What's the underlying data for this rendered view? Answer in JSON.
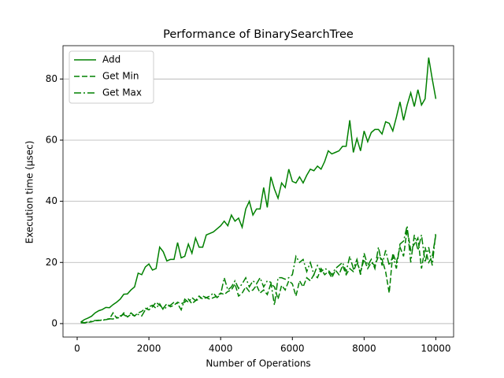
{
  "chart_data": {
    "type": "line",
    "title": "Performance of BinarySearchTree",
    "x_label": "Number of Operations",
    "y_label": "Execution time (μsec)",
    "x": [
      100,
      200,
      300,
      400,
      500,
      600,
      700,
      800,
      900,
      1000,
      1100,
      1200,
      1300,
      1400,
      1500,
      1600,
      1700,
      1800,
      1900,
      2000,
      2100,
      2200,
      2300,
      2400,
      2500,
      2600,
      2700,
      2800,
      2900,
      3000,
      3100,
      3200,
      3300,
      3400,
      3500,
      3600,
      3700,
      3800,
      3900,
      4000,
      4100,
      4200,
      4300,
      4400,
      4500,
      4600,
      4700,
      4800,
      4900,
      5000,
      5100,
      5200,
      5300,
      5400,
      5500,
      5600,
      5700,
      5800,
      5900,
      6000,
      6100,
      6200,
      6300,
      6400,
      6500,
      6600,
      6700,
      6800,
      6900,
      7000,
      7100,
      7200,
      7300,
      7400,
      7500,
      7600,
      7700,
      7800,
      7900,
      8000,
      8100,
      8200,
      8300,
      8400,
      8500,
      8600,
      8700,
      8800,
      8900,
      9000,
      9100,
      9200,
      9300,
      9400,
      9500,
      9600,
      9700,
      9800,
      9900,
      10000
    ],
    "series": [
      {
        "name": "Add",
        "color": "#008000",
        "linestyle": "solid",
        "values": [
          0.5,
          1.3,
          1.8,
          2.4,
          3.5,
          4.2,
          4.6,
          5.3,
          5.2,
          6.2,
          7,
          8,
          9.6,
          9.7,
          11,
          12,
          16.5,
          16,
          18.5,
          19.5,
          17.5,
          18,
          25,
          23.5,
          20.5,
          21,
          21,
          26.5,
          21.5,
          22,
          26,
          23,
          28,
          25,
          25,
          29,
          29.5,
          30,
          31,
          32,
          33.5,
          32,
          35.5,
          33.5,
          34.5,
          31.5,
          37.5,
          40,
          35.5,
          37.5,
          37.5,
          44.5,
          38,
          48,
          44,
          41,
          46,
          44.5,
          50.5,
          46.5,
          46,
          48,
          46,
          48.5,
          50.5,
          50,
          51.5,
          50.5,
          53,
          56.5,
          55.5,
          56,
          56.5,
          58,
          58,
          66.5,
          56,
          60.5,
          56.5,
          63,
          59.5,
          62.5,
          63.5,
          63.5,
          62,
          66,
          65.5,
          63,
          67.5,
          72.5,
          66.5,
          71.5,
          75.5,
          71,
          76.5,
          71.5,
          73.5,
          87,
          80,
          73.5
        ]
      },
      {
        "name": "Get Min",
        "color": "#008000",
        "linestyle": "dashed",
        "values": [
          0.3,
          0.2,
          0.4,
          0.6,
          0.9,
          1.0,
          1.2,
          1.3,
          1.5,
          3.5,
          1.8,
          2.0,
          3.5,
          2.2,
          3.0,
          2.5,
          3.5,
          4.0,
          5.0,
          4.5,
          5.5,
          7.0,
          6.0,
          5.0,
          6.5,
          5.5,
          6.0,
          7.0,
          6.5,
          7.0,
          8.0,
          6.5,
          7.5,
          9.0,
          8.0,
          8.5,
          8.0,
          8.5,
          9.0,
          10.0,
          9.5,
          10.5,
          11.0,
          13.0,
          9.0,
          10.0,
          12.0,
          10.5,
          11.0,
          12.5,
          10.0,
          11.0,
          9.5,
          13.0,
          12.0,
          8.0,
          12.5,
          11.0,
          14.0,
          13.0,
          9.0,
          14.0,
          12.0,
          15.0,
          14.0,
          16.0,
          15.0,
          18.0,
          16.0,
          17.0,
          15.0,
          17.5,
          16.0,
          19.0,
          16.0,
          18.0,
          17.0,
          20.0,
          17.0,
          21.0,
          18.0,
          20.0,
          19.0,
          22.0,
          21.0,
          17.0,
          10.0,
          23.0,
          20.0,
          25.0,
          22.0,
          31.0,
          24.0,
          26.0,
          28.0,
          18.0,
          25.0,
          20.0,
          22.0,
          29.0
        ]
      },
      {
        "name": "Get Max",
        "color": "#008000",
        "linestyle": "dashdot",
        "values": [
          0.5,
          0.3,
          0.5,
          0.8,
          1.0,
          1.1,
          1.0,
          1.4,
          1.6,
          1.5,
          2.0,
          2.5,
          3.0,
          2.0,
          3.5,
          2.5,
          3.0,
          2.5,
          4.5,
          5.5,
          6.0,
          5.0,
          6.5,
          4.5,
          5.5,
          6.0,
          7.0,
          6.5,
          4.5,
          8.0,
          7.0,
          8.5,
          7.5,
          8.0,
          9.0,
          8.5,
          9.0,
          10.0,
          8.5,
          9.5,
          15.0,
          11.0,
          12.0,
          14.0,
          11.5,
          13.0,
          15.0,
          12.0,
          14.0,
          13.0,
          15.0,
          12.0,
          14.0,
          13.5,
          6.0,
          15.0,
          15.0,
          14.5,
          15.0,
          16.0,
          22.0,
          20.0,
          21.0,
          17.0,
          20.0,
          16.0,
          19.0,
          17.0,
          18.0,
          17.5,
          16.0,
          18.0,
          19.0,
          20.0,
          17.0,
          22.0,
          18.0,
          21.0,
          16.0,
          23.0,
          19.0,
          21.0,
          18.0,
          25.0,
          19.0,
          24.0,
          19.0,
          22.0,
          18.0,
          26.0,
          27.0,
          32.0,
          20.0,
          29.0,
          24.0,
          29.0,
          20.0,
          25.0,
          19.0,
          30.0
        ]
      }
    ],
    "xlim": [
      -395,
      10495
    ],
    "xticks": [
      0,
      2000,
      4000,
      6000,
      8000,
      10000
    ],
    "ylim": [
      -4.4,
      90.9
    ],
    "yticks": [
      0,
      20,
      40,
      60,
      80
    ],
    "grid": "y",
    "legend": "upper left"
  }
}
